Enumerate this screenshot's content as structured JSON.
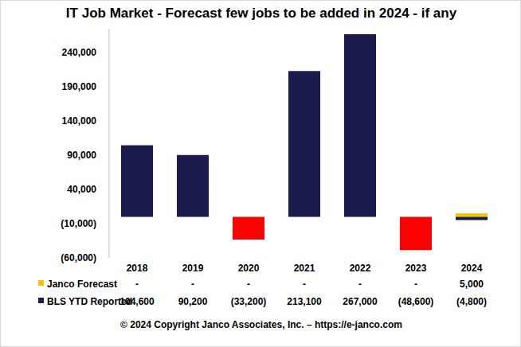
{
  "chart_data": {
    "type": "bar",
    "title": "IT Job Market - Forecast few jobs to be added in 2024 - if any",
    "annotations": [
      "© 2024 Copyright Janco Associates, Inc. – https://e-janco.com"
    ],
    "categories": [
      "2018",
      "2019",
      "2020",
      "2021",
      "2022",
      "2023",
      "2024"
    ],
    "series": [
      {
        "name": "Janco Forecast",
        "color": "#ffc000",
        "values": [
          null,
          null,
          null,
          null,
          null,
          null,
          5000
        ],
        "value_labels": [
          "-",
          "-",
          "-",
          "-",
          "-",
          "-",
          "5,000"
        ]
      },
      {
        "name": "BLS YTD Reported",
        "color": "#1b1b4d",
        "colors": [
          "#1b1b4d",
          "#1b1b4d",
          "#ff0000",
          "#1b1b4d",
          "#1b1b4d",
          "#ff0000",
          "#1b1b4d"
        ],
        "values": [
          104600,
          90200,
          -33200,
          213100,
          267000,
          -48600,
          -4800
        ],
        "value_labels": [
          "104,600",
          "90,200",
          "(33,200)",
          "213,100",
          "267,000",
          "(48,600)",
          "(4,800)"
        ]
      }
    ],
    "ylim": [
      -60000,
      275000
    ],
    "yticks": [
      {
        "value": -60000,
        "label": "(60,000)"
      },
      {
        "value": -10000,
        "label": "(10,000)"
      },
      {
        "value": 40000,
        "label": "40,000"
      },
      {
        "value": 90000,
        "label": "90,000"
      },
      {
        "value": 140000,
        "label": "140,000"
      },
      {
        "value": 190000,
        "label": "190,000"
      },
      {
        "value": 240000,
        "label": "240,000"
      }
    ],
    "grid": false
  }
}
